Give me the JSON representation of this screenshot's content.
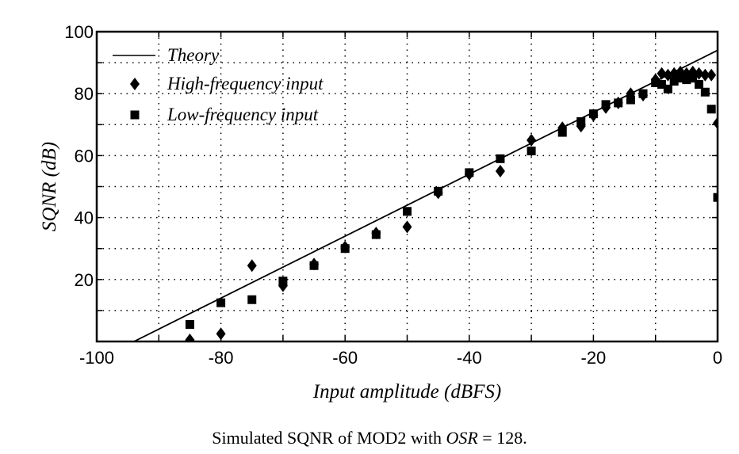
{
  "chart_data": {
    "type": "scatter",
    "xlabel": "Input amplitude (dBFS)",
    "ylabel": "SQNR (dB)",
    "xlim": [
      -100,
      0
    ],
    "ylim": [
      0,
      100
    ],
    "xticks": [
      -100,
      -80,
      -60,
      -40,
      -20,
      0
    ],
    "yticks": [
      20,
      40,
      60,
      80,
      100
    ],
    "grid": "dotted, every 10 units",
    "legend_position": "top-left",
    "series": [
      {
        "name": "Theory",
        "style": "line",
        "x": [
          -94,
          0
        ],
        "y": [
          0,
          94
        ]
      },
      {
        "name": "High-frequency input",
        "style": "diamond",
        "x": [
          -85,
          -80,
          -75,
          -70,
          -65,
          -60,
          -55,
          -50,
          -45,
          -40,
          -35,
          -30,
          -25,
          -22,
          -20,
          -18,
          -16,
          -14,
          -12,
          -10,
          -9,
          -8,
          -7,
          -6,
          -5,
          -4,
          -3,
          -2,
          -1,
          0
        ],
        "y": [
          0.5,
          2.5,
          24.5,
          18,
          25,
          30.5,
          35,
          37,
          48,
          54,
          55,
          65,
          69,
          69.5,
          73,
          75.5,
          77,
          80,
          79.5,
          84.5,
          86.5,
          86,
          86.5,
          87,
          86.5,
          87,
          86.5,
          86,
          86,
          70.5
        ]
      },
      {
        "name": "Low-frequency input",
        "style": "square",
        "x": [
          -85,
          -80,
          -75,
          -70,
          -65,
          -60,
          -55,
          -50,
          -45,
          -40,
          -35,
          -30,
          -25,
          -22,
          -20,
          -18,
          -16,
          -14,
          -12,
          -10,
          -9,
          -8,
          -7,
          -6,
          -5,
          -4,
          -3,
          -2,
          -1,
          0
        ],
        "y": [
          5.5,
          12.5,
          13.5,
          19.5,
          24.5,
          30,
          34.5,
          42,
          48.5,
          54.5,
          59,
          61.5,
          67.5,
          71,
          73.5,
          76.5,
          77,
          78,
          80,
          83.5,
          83,
          81.5,
          84,
          85,
          84.5,
          85,
          83,
          80.5,
          75,
          46.5
        ]
      }
    ]
  },
  "caption": {
    "prefix": "Simulated SQNR of MOD2 with ",
    "italic": "OSR",
    "suffix": " = 128."
  }
}
